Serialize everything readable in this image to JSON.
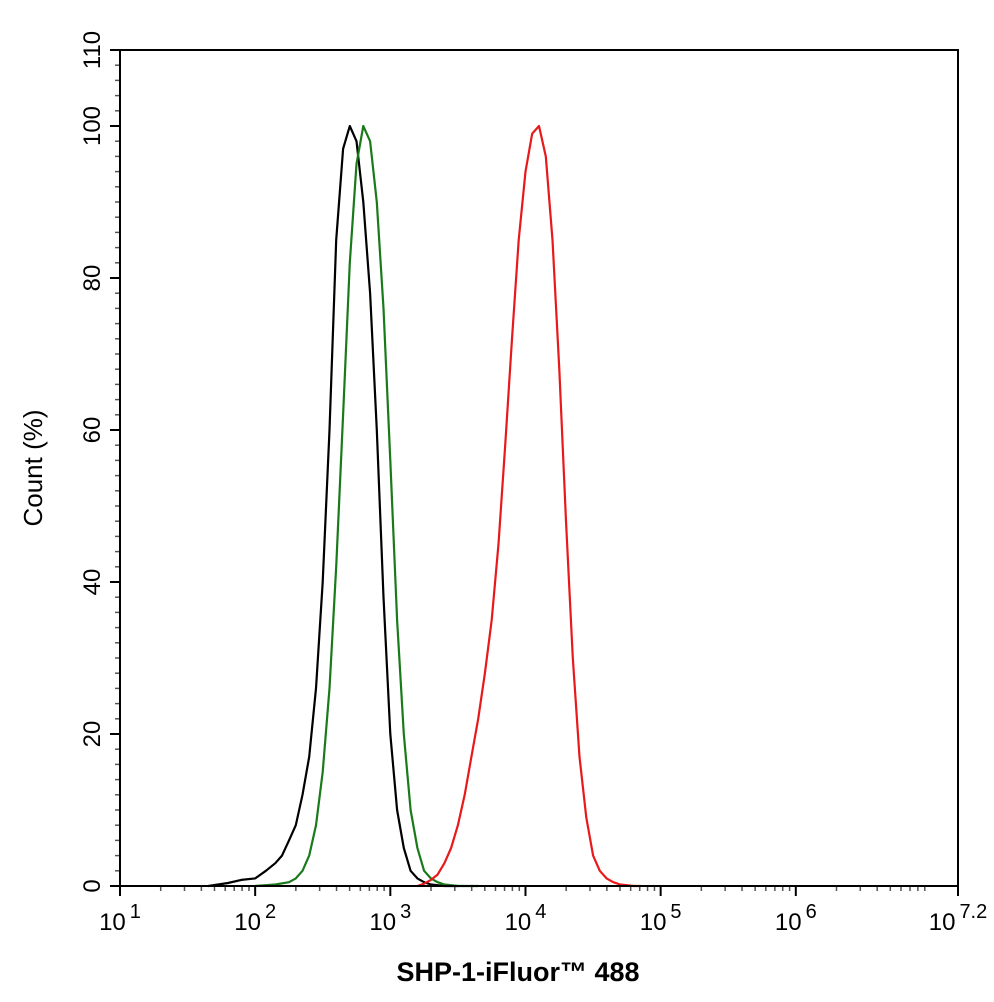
{
  "chart_data": {
    "type": "line",
    "subtype": "flow-cytometry-histogram",
    "title": "",
    "xlabel": "SHP-1-iFluor™ 488",
    "ylabel": "Count  (%)",
    "x_scale": "log10",
    "xlim": [
      10,
      15848931.92
    ],
    "ylim": [
      0,
      110
    ],
    "x_ticks": [
      {
        "base": "10",
        "exp": "1"
      },
      {
        "base": "10",
        "exp": "2"
      },
      {
        "base": "10",
        "exp": "3"
      },
      {
        "base": "10",
        "exp": "4"
      },
      {
        "base": "10",
        "exp": "5"
      },
      {
        "base": "10",
        "exp": "6"
      },
      {
        "base": "10",
        "exp": "7.2"
      }
    ],
    "y_ticks": [
      "0",
      "20",
      "40",
      "60",
      "80",
      "100",
      "110"
    ],
    "y_tick_values": [
      0,
      20,
      40,
      60,
      80,
      100,
      110
    ],
    "grid": false,
    "legend": "none",
    "series": [
      {
        "color": "#000000",
        "x": [
          45,
          63,
          79,
          100,
          120,
          141,
          158,
          178,
          200,
          224,
          251,
          282,
          316,
          355,
          398,
          447,
          501,
          562,
          631,
          708,
          794,
          891,
          1000,
          1122,
          1259,
          1413,
          1585,
          1778,
          1995,
          2239,
          2512,
          2818,
          3162
        ],
        "y": [
          0,
          0.4,
          0.8,
          1,
          2,
          3,
          4,
          6,
          8,
          12,
          17,
          26,
          40,
          60,
          85,
          97,
          100,
          98,
          90,
          78,
          60,
          38,
          20,
          10,
          5,
          2,
          1,
          0.5,
          0.2,
          0.1,
          0,
          0,
          0
        ]
      },
      {
        "color": "#1a7a1a",
        "x": [
          100,
          141,
          178,
          200,
          224,
          251,
          282,
          316,
          355,
          398,
          447,
          501,
          562,
          631,
          708,
          794,
          891,
          1000,
          1122,
          1259,
          1413,
          1585,
          1778,
          1995,
          2239,
          2512,
          2818,
          3162,
          3548,
          3981,
          4467
        ],
        "y": [
          0,
          0.2,
          0.5,
          1,
          2,
          4,
          8,
          15,
          26,
          42,
          62,
          82,
          95,
          100,
          98,
          90,
          76,
          56,
          35,
          20,
          10,
          5,
          2,
          1,
          0.5,
          0.2,
          0.1,
          0,
          0,
          0,
          0
        ]
      },
      {
        "color": "#e8191b",
        "x": [
          1585,
          1778,
          1995,
          2239,
          2512,
          2818,
          3162,
          3548,
          3981,
          4467,
          5012,
          5623,
          6310,
          7079,
          7943,
          8913,
          10000,
          11220,
          12589,
          14125,
          15849,
          17783,
          19953,
          22387,
          25119,
          28184,
          31623,
          35481,
          39811,
          44668,
          50119,
          56234,
          63096,
          70795
        ],
        "y": [
          0,
          0.3,
          0.8,
          1.5,
          3,
          5,
          8,
          12,
          17,
          22,
          28,
          35,
          45,
          58,
          72,
          85,
          94,
          99,
          100,
          96,
          85,
          68,
          48,
          30,
          17,
          9,
          4,
          2,
          1,
          0.5,
          0.2,
          0.1,
          0,
          0
        ]
      }
    ]
  }
}
